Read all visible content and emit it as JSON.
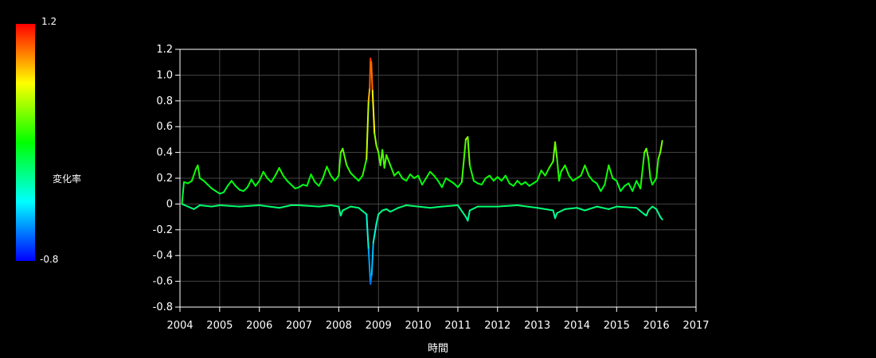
{
  "chart_data": {
    "type": "line",
    "xlabel": "時間",
    "ylabel": "",
    "xlim": [
      2004,
      2017
    ],
    "ylim": [
      -0.8,
      1.2
    ],
    "x_ticks": [
      "2004",
      "2005",
      "2006",
      "2007",
      "2008",
      "2009",
      "2010",
      "2011",
      "2012",
      "2013",
      "2014",
      "2015",
      "2016",
      "2017"
    ],
    "y_ticks": [
      "1.2",
      "1.0",
      "0.8",
      "0.6",
      "0.4",
      "0.2",
      "0",
      "-0.2",
      "-0.4",
      "-0.6",
      "-0.8"
    ],
    "grid": true,
    "colorbar": {
      "label": "変化率",
      "max_label": "1.2",
      "min_label": "-0.8",
      "min": -0.8,
      "max": 1.2,
      "colors": [
        "#ff0000",
        "#ffff00",
        "#00ff00",
        "#00ffff",
        "#0000ff"
      ]
    },
    "series": [
      {
        "values": [
          [
            2004.05,
            0.0
          ],
          [
            2004.1,
            0.17
          ],
          [
            2004.2,
            0.16
          ],
          [
            2004.3,
            0.18
          ],
          [
            2004.4,
            0.27
          ],
          [
            2004.45,
            0.3
          ],
          [
            2004.5,
            0.2
          ],
          [
            2004.6,
            0.18
          ],
          [
            2004.7,
            0.15
          ],
          [
            2004.8,
            0.12
          ],
          [
            2004.9,
            0.1
          ],
          [
            2005.0,
            0.08
          ],
          [
            2005.1,
            0.09
          ],
          [
            2005.2,
            0.14
          ],
          [
            2005.3,
            0.18
          ],
          [
            2005.4,
            0.14
          ],
          [
            2005.5,
            0.11
          ],
          [
            2005.6,
            0.1
          ],
          [
            2005.7,
            0.13
          ],
          [
            2005.8,
            0.19
          ],
          [
            2005.9,
            0.14
          ],
          [
            2006.0,
            0.18
          ],
          [
            2006.1,
            0.25
          ],
          [
            2006.2,
            0.2
          ],
          [
            2006.3,
            0.17
          ],
          [
            2006.4,
            0.22
          ],
          [
            2006.5,
            0.28
          ],
          [
            2006.6,
            0.22
          ],
          [
            2006.7,
            0.18
          ],
          [
            2006.8,
            0.15
          ],
          [
            2006.9,
            0.12
          ],
          [
            2007.0,
            0.13
          ],
          [
            2007.1,
            0.15
          ],
          [
            2007.2,
            0.14
          ],
          [
            2007.3,
            0.23
          ],
          [
            2007.4,
            0.17
          ],
          [
            2007.5,
            0.14
          ],
          [
            2007.6,
            0.2
          ],
          [
            2007.7,
            0.29
          ],
          [
            2007.8,
            0.22
          ],
          [
            2007.9,
            0.18
          ],
          [
            2008.0,
            0.22
          ],
          [
            2008.05,
            0.4
          ],
          [
            2008.1,
            0.43
          ],
          [
            2008.2,
            0.3
          ],
          [
            2008.3,
            0.24
          ],
          [
            2008.4,
            0.21
          ],
          [
            2008.5,
            0.18
          ],
          [
            2008.6,
            0.22
          ],
          [
            2008.7,
            0.35
          ],
          [
            2008.75,
            0.8
          ],
          [
            2008.78,
            0.9
          ],
          [
            2008.8,
            1.13
          ],
          [
            2008.82,
            1.1
          ],
          [
            2008.85,
            0.88
          ],
          [
            2008.9,
            0.55
          ],
          [
            2008.95,
            0.45
          ],
          [
            2009.0,
            0.4
          ],
          [
            2009.05,
            0.3
          ],
          [
            2009.1,
            0.42
          ],
          [
            2009.15,
            0.28
          ],
          [
            2009.2,
            0.38
          ],
          [
            2009.3,
            0.3
          ],
          [
            2009.4,
            0.22
          ],
          [
            2009.5,
            0.25
          ],
          [
            2009.6,
            0.2
          ],
          [
            2009.7,
            0.18
          ],
          [
            2009.8,
            0.23
          ],
          [
            2009.9,
            0.2
          ],
          [
            2010.0,
            0.22
          ],
          [
            2010.1,
            0.15
          ],
          [
            2010.2,
            0.2
          ],
          [
            2010.3,
            0.25
          ],
          [
            2010.4,
            0.22
          ],
          [
            2010.5,
            0.18
          ],
          [
            2010.6,
            0.13
          ],
          [
            2010.7,
            0.2
          ],
          [
            2010.8,
            0.18
          ],
          [
            2010.9,
            0.16
          ],
          [
            2011.0,
            0.13
          ],
          [
            2011.1,
            0.17
          ],
          [
            2011.2,
            0.5
          ],
          [
            2011.25,
            0.52
          ],
          [
            2011.3,
            0.3
          ],
          [
            2011.4,
            0.18
          ],
          [
            2011.5,
            0.16
          ],
          [
            2011.6,
            0.15
          ],
          [
            2011.7,
            0.2
          ],
          [
            2011.8,
            0.22
          ],
          [
            2011.9,
            0.18
          ],
          [
            2012.0,
            0.21
          ],
          [
            2012.1,
            0.18
          ],
          [
            2012.2,
            0.22
          ],
          [
            2012.3,
            0.16
          ],
          [
            2012.4,
            0.14
          ],
          [
            2012.5,
            0.18
          ],
          [
            2012.6,
            0.15
          ],
          [
            2012.7,
            0.17
          ],
          [
            2012.8,
            0.14
          ],
          [
            2012.9,
            0.16
          ],
          [
            2013.0,
            0.18
          ],
          [
            2013.1,
            0.26
          ],
          [
            2013.2,
            0.22
          ],
          [
            2013.3,
            0.28
          ],
          [
            2013.4,
            0.33
          ],
          [
            2013.45,
            0.48
          ],
          [
            2013.5,
            0.35
          ],
          [
            2013.55,
            0.18
          ],
          [
            2013.6,
            0.25
          ],
          [
            2013.7,
            0.3
          ],
          [
            2013.8,
            0.22
          ],
          [
            2013.9,
            0.18
          ],
          [
            2014.0,
            0.2
          ],
          [
            2014.1,
            0.22
          ],
          [
            2014.2,
            0.3
          ],
          [
            2014.3,
            0.22
          ],
          [
            2014.4,
            0.18
          ],
          [
            2014.5,
            0.16
          ],
          [
            2014.6,
            0.1
          ],
          [
            2014.7,
            0.15
          ],
          [
            2014.8,
            0.3
          ],
          [
            2014.85,
            0.25
          ],
          [
            2014.9,
            0.2
          ],
          [
            2015.0,
            0.18
          ],
          [
            2015.1,
            0.1
          ],
          [
            2015.2,
            0.14
          ],
          [
            2015.3,
            0.16
          ],
          [
            2015.4,
            0.1
          ],
          [
            2015.5,
            0.18
          ],
          [
            2015.6,
            0.12
          ],
          [
            2015.7,
            0.4
          ],
          [
            2015.75,
            0.43
          ],
          [
            2015.8,
            0.35
          ],
          [
            2015.85,
            0.2
          ],
          [
            2015.9,
            0.15
          ],
          [
            2016.0,
            0.2
          ],
          [
            2016.05,
            0.35
          ],
          [
            2016.1,
            0.4
          ],
          [
            2016.15,
            0.49
          ]
        ]
      },
      {
        "values": [
          [
            2004.05,
            0.0
          ],
          [
            2004.2,
            -0.02
          ],
          [
            2004.35,
            -0.04
          ],
          [
            2004.5,
            -0.01
          ],
          [
            2004.8,
            -0.02
          ],
          [
            2005.0,
            -0.01
          ],
          [
            2005.5,
            -0.02
          ],
          [
            2006.0,
            -0.01
          ],
          [
            2006.5,
            -0.03
          ],
          [
            2006.8,
            -0.01
          ],
          [
            2007.0,
            -0.01
          ],
          [
            2007.5,
            -0.02
          ],
          [
            2007.8,
            -0.01
          ],
          [
            2008.0,
            -0.02
          ],
          [
            2008.05,
            -0.09
          ],
          [
            2008.1,
            -0.05
          ],
          [
            2008.3,
            -0.02
          ],
          [
            2008.5,
            -0.03
          ],
          [
            2008.7,
            -0.08
          ],
          [
            2008.75,
            -0.35
          ],
          [
            2008.8,
            -0.62
          ],
          [
            2008.83,
            -0.55
          ],
          [
            2008.87,
            -0.3
          ],
          [
            2008.95,
            -0.15
          ],
          [
            2009.0,
            -0.08
          ],
          [
            2009.1,
            -0.05
          ],
          [
            2009.2,
            -0.04
          ],
          [
            2009.3,
            -0.06
          ],
          [
            2009.5,
            -0.03
          ],
          [
            2009.7,
            -0.01
          ],
          [
            2010.0,
            -0.02
          ],
          [
            2010.3,
            -0.03
          ],
          [
            2010.6,
            -0.02
          ],
          [
            2011.0,
            -0.01
          ],
          [
            2011.2,
            -0.1
          ],
          [
            2011.25,
            -0.13
          ],
          [
            2011.3,
            -0.05
          ],
          [
            2011.5,
            -0.02
          ],
          [
            2012.0,
            -0.02
          ],
          [
            2012.5,
            -0.01
          ],
          [
            2013.0,
            -0.03
          ],
          [
            2013.4,
            -0.05
          ],
          [
            2013.45,
            -0.11
          ],
          [
            2013.5,
            -0.07
          ],
          [
            2013.7,
            -0.04
          ],
          [
            2014.0,
            -0.03
          ],
          [
            2014.2,
            -0.05
          ],
          [
            2014.5,
            -0.02
          ],
          [
            2014.8,
            -0.04
          ],
          [
            2015.0,
            -0.02
          ],
          [
            2015.5,
            -0.03
          ],
          [
            2015.7,
            -0.08
          ],
          [
            2015.75,
            -0.09
          ],
          [
            2015.8,
            -0.05
          ],
          [
            2015.9,
            -0.02
          ],
          [
            2016.0,
            -0.04
          ],
          [
            2016.1,
            -0.1
          ],
          [
            2016.15,
            -0.12
          ]
        ]
      }
    ]
  }
}
